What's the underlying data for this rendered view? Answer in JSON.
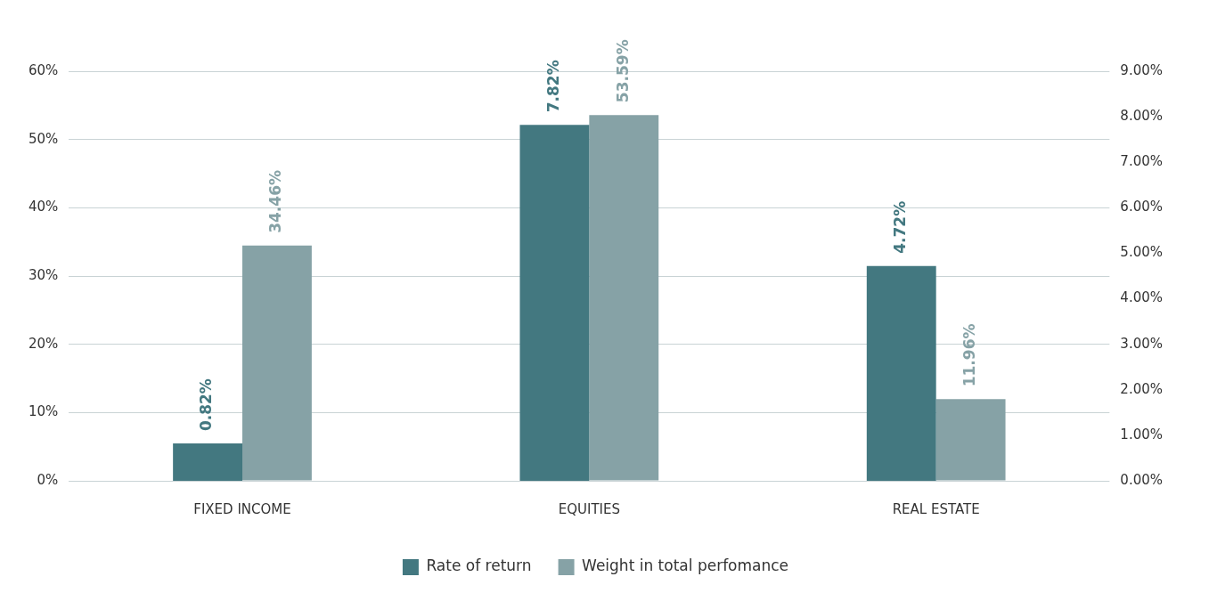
{
  "chart_data": {
    "type": "bar",
    "categories": [
      "FIXED INCOME",
      "EQUITIES",
      "REAL ESTATE"
    ],
    "series": [
      {
        "name": "Rate of return",
        "color": "#437880",
        "axis": "y2",
        "values": [
          0.82,
          7.82,
          4.72
        ],
        "value_labels": [
          "0.82%",
          "7.82%",
          "4.72%"
        ]
      },
      {
        "name": "Weight in total perfomance",
        "color": "#86a2a6",
        "values": [
          34.46,
          53.59,
          11.96
        ],
        "value_labels": [
          "34.46%",
          "53.59%",
          "11.96%"
        ]
      }
    ],
    "ylim": [
      0,
      60
    ],
    "yticks": [
      {
        "value": 0,
        "label": "0%"
      },
      {
        "value": 10,
        "label": "10%"
      },
      {
        "value": 20,
        "label": "20%"
      },
      {
        "value": 30,
        "label": "30%"
      },
      {
        "value": 40,
        "label": "40%"
      },
      {
        "value": 50,
        "label": "50%"
      },
      {
        "value": 60,
        "label": "60%"
      }
    ],
    "y2lim": [
      0,
      9
    ],
    "y2ticks": [
      {
        "value": 0,
        "label": "0.00%"
      },
      {
        "value": 1,
        "label": "1.00%"
      },
      {
        "value": 2,
        "label": "2.00%"
      },
      {
        "value": 3,
        "label": "3.00%"
      },
      {
        "value": 4,
        "label": "4.00%"
      },
      {
        "value": 5,
        "label": "5.00%"
      },
      {
        "value": 6,
        "label": "6.00%"
      },
      {
        "value": 7,
        "label": "7.00%"
      },
      {
        "value": 8,
        "label": "8.00%"
      },
      {
        "value": 9,
        "label": "9.00%"
      }
    ],
    "grid": "y",
    "legend": "bottom"
  }
}
